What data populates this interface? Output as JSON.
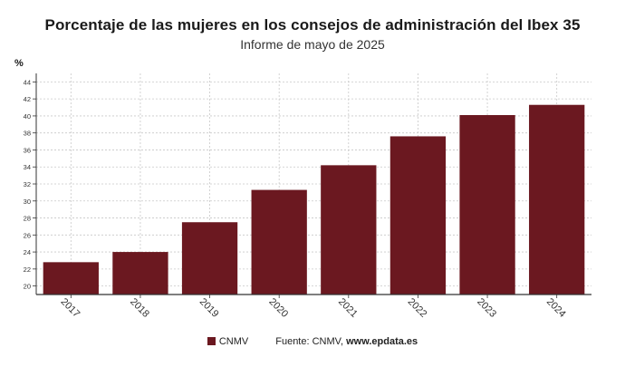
{
  "header": {
    "title": "Porcentaje de las mujeres en los consejos de administración del Ibex 35",
    "subtitle": "Informe de mayo de 2025",
    "unit": "%"
  },
  "legend": {
    "series_label": "CNMV",
    "source_prefix": "Fuente: CNMV,",
    "source_site": "www.epdata.es"
  },
  "colors": {
    "bar": "#6b1820",
    "grid": "#c8c8c8",
    "axis": "#333333"
  },
  "chart_data": {
    "type": "bar",
    "categories": [
      "2017",
      "2018",
      "2019",
      "2020",
      "2021",
      "2022",
      "2023",
      "2024"
    ],
    "series": [
      {
        "name": "CNMV",
        "values": [
          22.8,
          24.0,
          27.5,
          31.3,
          34.2,
          37.6,
          40.1,
          41.3
        ]
      }
    ],
    "ylabel": "%",
    "ylim": [
      19,
      45
    ],
    "yticks": [
      20,
      22,
      24,
      26,
      28,
      30,
      32,
      34,
      36,
      38,
      40,
      42,
      44
    ],
    "grid": true,
    "legend_position": "bottom"
  }
}
